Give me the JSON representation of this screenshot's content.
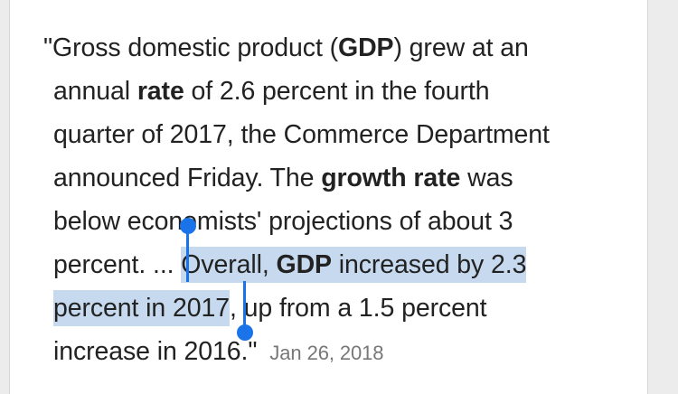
{
  "snippet": {
    "open_quote": "\"",
    "l1_a": "Gross domestic product (",
    "l1_b": "GDP",
    "l1_c": ") grew at an",
    "l2_a": "annual ",
    "l2_b": "rate",
    "l2_c": " of 2.6 percent in the fourth",
    "l3": "quarter of 2017, the Commerce Department",
    "l4_a": "announced Friday. The ",
    "l4_b": "growth rate",
    "l4_c": " was",
    "l5": "below economists' projections of about 3",
    "l6_a": "percent. ... ",
    "l6_sel_a": "Overall, ",
    "l6_sel_b": "GDP",
    "l6_sel_c": " increased by 2.3",
    "l7_sel": "percent in 2017",
    "l7_b": ", up from a 1.5 percent",
    "l8": "increase in 2016.\"",
    "date": "Jan 26, 2018"
  },
  "colors": {
    "selection": "#c6d9ef",
    "handle": "#1a73e8",
    "text": "#222222",
    "date": "#777777"
  }
}
